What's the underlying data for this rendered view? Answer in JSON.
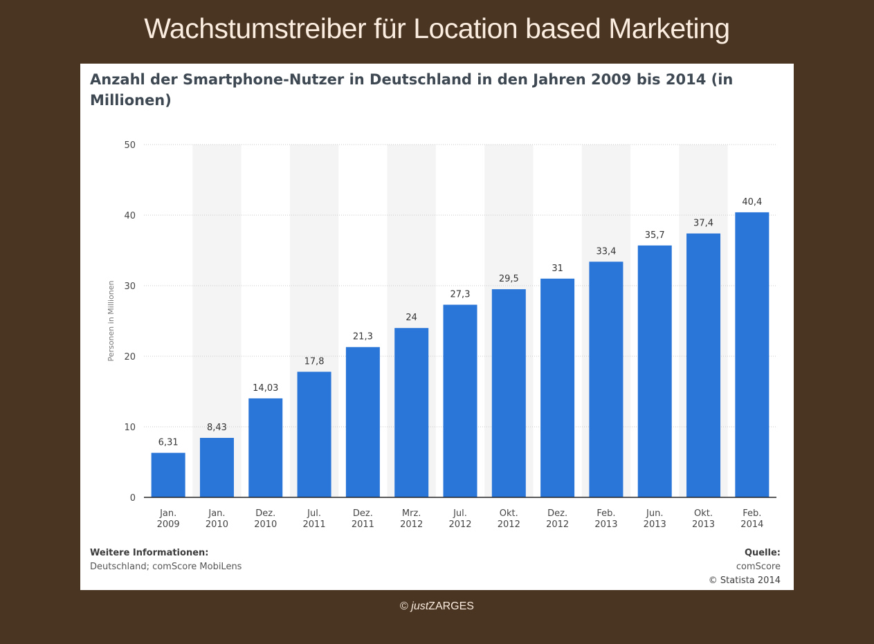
{
  "slide": {
    "title": "Wachstumstreiber für Location based Marketing",
    "footer_prefix": "© ",
    "footer_italic": "just",
    "footer_rest": "ZARGES"
  },
  "chart_data": {
    "type": "bar",
    "title": "Anzahl der Smartphone-Nutzer in Deutschland in den Jahren 2009 bis 2014 (in Millionen)",
    "xlabel": "",
    "ylabel": "Personen in Millionen",
    "ylim": [
      0,
      50
    ],
    "yticks": [
      0,
      10,
      20,
      30,
      40,
      50
    ],
    "categories": [
      [
        "Jan.",
        "2009"
      ],
      [
        "Jan.",
        "2010"
      ],
      [
        "Dez.",
        "2010"
      ],
      [
        "Jul.",
        "2011"
      ],
      [
        "Dez.",
        "2011"
      ],
      [
        "Mrz.",
        "2012"
      ],
      [
        "Jul.",
        "2012"
      ],
      [
        "Okt.",
        "2012"
      ],
      [
        "Dez.",
        "2012"
      ],
      [
        "Feb.",
        "2013"
      ],
      [
        "Jun.",
        "2013"
      ],
      [
        "Okt.",
        "2013"
      ],
      [
        "Feb.",
        "2014"
      ]
    ],
    "values": [
      6.31,
      8.43,
      14.03,
      17.8,
      21.3,
      24,
      27.3,
      29.5,
      31,
      33.4,
      35.7,
      37.4,
      40.4
    ],
    "value_labels": [
      "6,31",
      "8,43",
      "14,03",
      "17,8",
      "21,3",
      "24",
      "27,3",
      "29,5",
      "31",
      "33,4",
      "35,7",
      "37,4",
      "40,4"
    ],
    "grid": true,
    "alternating_column_bands": true,
    "bar_color": "#2a75d8"
  },
  "info": {
    "left_heading": "Weitere Informationen:",
    "left_text": "Deutschland; comScore MobiLens",
    "right_heading": "Quelle:",
    "right_source": "comScore",
    "right_copyright": "© Statista 2014"
  }
}
